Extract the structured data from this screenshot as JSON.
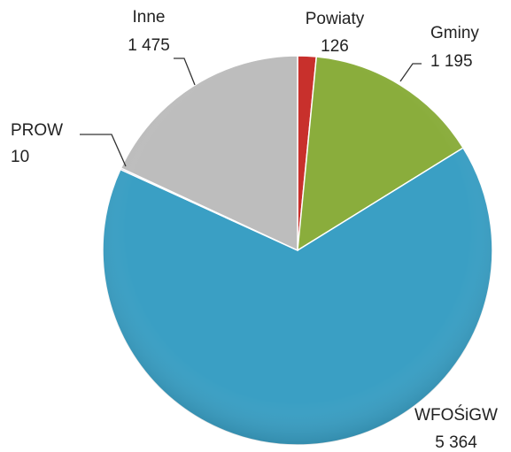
{
  "chart_data": {
    "type": "pie",
    "categories": [
      "Powiaty",
      "Gminy",
      "WFOŚiGW",
      "PROW",
      "Inne"
    ],
    "values": [
      126,
      1195,
      5364,
      10,
      1475
    ],
    "value_labels": [
      "126",
      "1 195",
      "5 364",
      "10",
      "1 475"
    ],
    "colors": [
      "#c8302c",
      "#8aad3c",
      "#3a9fc4",
      "#7a5ea0",
      "#bdbdbd"
    ]
  }
}
